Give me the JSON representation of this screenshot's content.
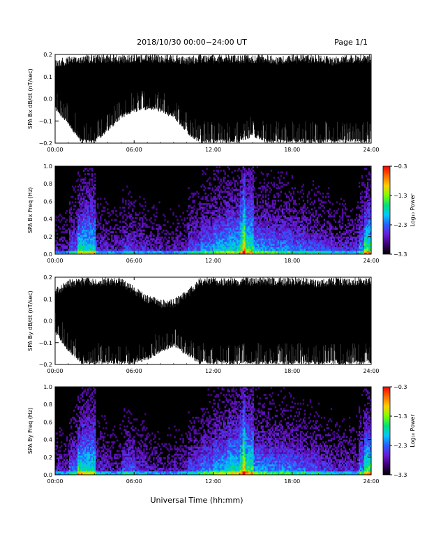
{
  "header": {
    "title": "2018/10/30  00:00−24:00 UT",
    "page": "Page 1/1"
  },
  "footer": {
    "xlabel": "Universal Time (hh:mm)"
  },
  "colorbar": {
    "label": "Log₁₀ Power",
    "ticks": [
      "−0.3",
      "−1.3",
      "−2.3",
      "−3.3"
    ],
    "range": [
      -3.3,
      -0.3
    ],
    "stops": [
      "#000000",
      "#3a0070",
      "#6a1ad8",
      "#2a5cff",
      "#00c8ff",
      "#00e07a",
      "#7cff00",
      "#ffd000",
      "#ff6a00",
      "#ff0000"
    ]
  },
  "chart_data": [
    {
      "type": "line",
      "ylabel": "SPA Bx dB/dt (nT/sec)",
      "ylim": [
        -0.2,
        0.2
      ],
      "xlim": [
        "00:00",
        "24:00"
      ],
      "xticks": [
        "00:00",
        "06:00",
        "12:00",
        "18:00",
        "24:00"
      ],
      "yticks": [
        "−0.2",
        "−0.1",
        "0.0",
        "0.1",
        "0.2"
      ],
      "envelope": {
        "hour": [
          0,
          1,
          2,
          3,
          4,
          5,
          6,
          7,
          8,
          9,
          10,
          11,
          12,
          13,
          14,
          15,
          16,
          17,
          18,
          19,
          20,
          21,
          22,
          23,
          24
        ],
        "upper": [
          0.18,
          0.19,
          0.2,
          0.2,
          0.2,
          0.2,
          0.2,
          0.2,
          0.2,
          0.2,
          0.19,
          0.2,
          0.2,
          0.2,
          0.2,
          0.2,
          0.2,
          0.19,
          0.2,
          0.2,
          0.2,
          0.19,
          0.2,
          0.2,
          0.2
        ],
        "lower": [
          -0.05,
          -0.12,
          -0.2,
          -0.2,
          -0.15,
          -0.09,
          -0.06,
          -0.05,
          -0.06,
          -0.09,
          -0.16,
          -0.2,
          -0.2,
          -0.2,
          -0.2,
          -0.17,
          -0.2,
          -0.2,
          -0.2,
          -0.2,
          -0.2,
          -0.2,
          -0.2,
          -0.2,
          -0.2
        ]
      }
    },
    {
      "type": "heatmap",
      "ylabel": "SPA Bx Freq (Hz)",
      "ylim": [
        0,
        1.0
      ],
      "xlim": [
        "00:00",
        "24:00"
      ],
      "xticks": [
        "00:00",
        "06:00",
        "12:00",
        "18:00",
        "24:00"
      ],
      "yticks": [
        "0.0",
        "0.2",
        "0.4",
        "0.6",
        "0.8",
        "1.0"
      ],
      "zlim": [
        -3.3,
        -0.3
      ],
      "activity_by_hour": [
        0.25,
        0.45,
        0.75,
        0.35,
        0.3,
        0.4,
        0.35,
        0.3,
        0.25,
        0.3,
        0.45,
        0.55,
        0.65,
        0.7,
        0.85,
        0.6,
        0.55,
        0.55,
        0.5,
        0.45,
        0.4,
        0.35,
        0.35,
        0.55
      ]
    },
    {
      "type": "line",
      "ylabel": "SPA By dB/dt (nT/sec)",
      "ylim": [
        -0.2,
        0.2
      ],
      "xlim": [
        "00:00",
        "24:00"
      ],
      "xticks": [
        "00:00",
        "06:00",
        "12:00",
        "18:00",
        "24:00"
      ],
      "yticks": [
        "−0.2",
        "−0.1",
        "0.0",
        "0.1",
        "0.2"
      ],
      "envelope": {
        "hour": [
          0,
          1,
          2,
          3,
          4,
          5,
          6,
          7,
          8,
          9,
          10,
          11,
          12,
          13,
          14,
          15,
          16,
          17,
          18,
          19,
          20,
          21,
          22,
          23,
          24
        ],
        "upper": [
          0.15,
          0.19,
          0.2,
          0.2,
          0.2,
          0.2,
          0.16,
          0.12,
          0.1,
          0.1,
          0.14,
          0.2,
          0.2,
          0.2,
          0.2,
          0.2,
          0.2,
          0.2,
          0.2,
          0.2,
          0.19,
          0.2,
          0.2,
          0.2,
          0.2
        ],
        "lower": [
          -0.06,
          -0.14,
          -0.2,
          -0.2,
          -0.2,
          -0.2,
          -0.2,
          -0.18,
          -0.15,
          -0.12,
          -0.16,
          -0.2,
          -0.2,
          -0.2,
          -0.2,
          -0.2,
          -0.2,
          -0.2,
          -0.2,
          -0.2,
          -0.2,
          -0.2,
          -0.2,
          -0.2,
          -0.2
        ]
      }
    },
    {
      "type": "heatmap",
      "ylabel": "SPA By Freq (Hz)",
      "ylim": [
        0,
        1.0
      ],
      "xlim": [
        "00:00",
        "24:00"
      ],
      "xticks": [
        "00:00",
        "06:00",
        "12:00",
        "18:00",
        "24:00"
      ],
      "yticks": [
        "0.0",
        "0.2",
        "0.4",
        "0.6",
        "0.8",
        "1.0"
      ],
      "zlim": [
        -3.3,
        -0.3
      ],
      "activity_by_hour": [
        0.3,
        0.5,
        0.75,
        0.35,
        0.3,
        0.45,
        0.35,
        0.3,
        0.25,
        0.3,
        0.45,
        0.55,
        0.65,
        0.75,
        0.85,
        0.6,
        0.55,
        0.55,
        0.5,
        0.45,
        0.4,
        0.35,
        0.35,
        0.55
      ]
    }
  ]
}
